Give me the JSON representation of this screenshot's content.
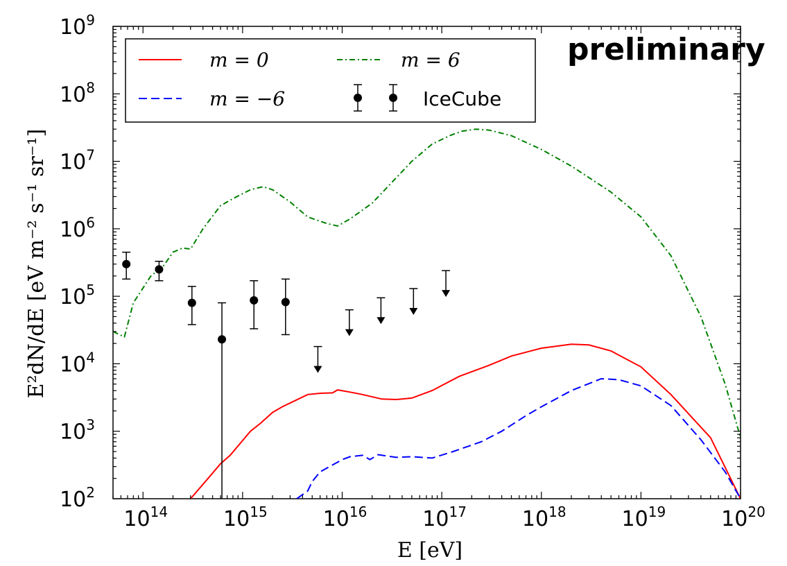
{
  "chart_data": {
    "type": "line",
    "annotation": "preliminary",
    "xlabel": "E [eV]",
    "ylabel": "E²dN/dE [eV m⁻² s⁻¹ sr⁻¹]",
    "xscale": "log",
    "yscale": "log",
    "xlim": [
      50000000000000.0,
      1e+20
    ],
    "ylim": [
      100,
      1000000000.0
    ],
    "x_ticks": [
      {
        "value": 100000000000000.0,
        "base": "10",
        "exp": "14"
      },
      {
        "value": 1000000000000000.0,
        "base": "10",
        "exp": "15"
      },
      {
        "value": 1e+16,
        "base": "10",
        "exp": "16"
      },
      {
        "value": 1e+17,
        "base": "10",
        "exp": "17"
      },
      {
        "value": 1e+18,
        "base": "10",
        "exp": "18"
      },
      {
        "value": 1e+19,
        "base": "10",
        "exp": "19"
      },
      {
        "value": 1e+20,
        "base": "10",
        "exp": "20"
      }
    ],
    "y_ticks": [
      {
        "value": 100.0,
        "base": "10",
        "exp": "2"
      },
      {
        "value": 1000.0,
        "base": "10",
        "exp": "3"
      },
      {
        "value": 10000.0,
        "base": "10",
        "exp": "4"
      },
      {
        "value": 100000.0,
        "base": "10",
        "exp": "5"
      },
      {
        "value": 1000000.0,
        "base": "10",
        "exp": "6"
      },
      {
        "value": 10000000.0,
        "base": "10",
        "exp": "7"
      },
      {
        "value": 100000000.0,
        "base": "10",
        "exp": "8"
      },
      {
        "value": 1000000000.0,
        "base": "10",
        "exp": "9"
      }
    ],
    "grid": false,
    "legend_position": "top-left",
    "series": [
      {
        "name": "m = 0",
        "color": "#ff0000",
        "style": "solid",
        "points": [
          [
            300000000000000.0,
            100
          ],
          [
            450000000000000.0,
            200
          ],
          [
            600000000000000.0,
            330
          ],
          [
            750000000000000.0,
            440
          ],
          [
            1200000000000000.0,
            1000
          ],
          [
            1500000000000000.0,
            1300
          ],
          [
            2000000000000000.0,
            1900
          ],
          [
            2500000000000000.0,
            2300
          ],
          [
            3300000000000000.0,
            2800
          ],
          [
            4500000000000000.0,
            3500
          ],
          [
            6000000000000000.0,
            3650
          ],
          [
            8000000000000000.0,
            3700
          ],
          [
            9000000000000000.0,
            4100
          ],
          [
            1.2e+16,
            3800
          ],
          [
            1.6e+16,
            3500
          ],
          [
            2.5e+16,
            3000
          ],
          [
            3.5e+16,
            2950
          ],
          [
            5e+16,
            3100
          ],
          [
            8e+16,
            4000
          ],
          [
            1.5e+17,
            6500
          ],
          [
            3e+17,
            9500
          ],
          [
            5e+17,
            13000
          ],
          [
            1e+18,
            17000
          ],
          [
            2e+18,
            19500
          ],
          [
            3e+18,
            19000
          ],
          [
            5e+18,
            15500
          ],
          [
            1e+19,
            9000
          ],
          [
            2e+19,
            3500
          ],
          [
            5e+19,
            800
          ],
          [
            1e+20,
            100
          ]
        ]
      },
      {
        "name": "m = −6",
        "color": "#0000ff",
        "style": "dashed",
        "points": [
          [
            3500000000000000.0,
            100
          ],
          [
            4500000000000000.0,
            130
          ],
          [
            5000000000000000.0,
            180
          ],
          [
            6000000000000000.0,
            250
          ],
          [
            1e+16,
            380
          ],
          [
            1.2e+16,
            420
          ],
          [
            1.6e+16,
            440
          ],
          [
            1.9e+16,
            380
          ],
          [
            2.3e+16,
            450
          ],
          [
            3.5e+16,
            410
          ],
          [
            5e+16,
            420
          ],
          [
            8e+16,
            400
          ],
          [
            1.3e+17,
            500
          ],
          [
            2.5e+17,
            700
          ],
          [
            4e+17,
            1000
          ],
          [
            7e+17,
            1700
          ],
          [
            1e+18,
            2300
          ],
          [
            2e+18,
            4000
          ],
          [
            4e+18,
            6000
          ],
          [
            6e+18,
            5800
          ],
          [
            1e+19,
            4700
          ],
          [
            2e+19,
            2400
          ],
          [
            4e+19,
            750
          ],
          [
            7e+19,
            250
          ],
          [
            1e+20,
            100
          ]
        ]
      },
      {
        "name": "m = 6",
        "color": "#008000",
        "style": "dashdot",
        "points": [
          [
            50000000000000.0,
            30000
          ],
          [
            65000000000000.0,
            25000
          ],
          [
            80000000000000.0,
            80000
          ],
          [
            120000000000000.0,
            200000
          ],
          [
            160000000000000.0,
            280000
          ],
          [
            200000000000000.0,
            450000
          ],
          [
            250000000000000.0,
            520000
          ],
          [
            300000000000000.0,
            500000
          ],
          [
            400000000000000.0,
            1000000
          ],
          [
            600000000000000.0,
            2200000
          ],
          [
            800000000000000.0,
            2800000
          ],
          [
            1200000000000000.0,
            3800000
          ],
          [
            1600000000000000.0,
            4200000
          ],
          [
            2000000000000000.0,
            3800000
          ],
          [
            3000000000000000.0,
            2500000
          ],
          [
            4500000000000000.0,
            1500000
          ],
          [
            7000000000000000.0,
            1200000
          ],
          [
            9000000000000000.0,
            1100000
          ],
          [
            1.2e+16,
            1400000
          ],
          [
            2e+16,
            2400000
          ],
          [
            3e+16,
            4500000
          ],
          [
            5e+16,
            10000000
          ],
          [
            8e+16,
            18000000
          ],
          [
            1.2e+17,
            24000000
          ],
          [
            1.6e+17,
            28000000
          ],
          [
            2.2e+17,
            30000000
          ],
          [
            3e+17,
            29000000
          ],
          [
            5e+17,
            24000000
          ],
          [
            1e+18,
            15000000
          ],
          [
            2e+18,
            8500000
          ],
          [
            5e+18,
            3500000
          ],
          [
            1e+19,
            1500000
          ],
          [
            2e+19,
            400000
          ],
          [
            4e+19,
            50000
          ],
          [
            7e+19,
            5000
          ],
          [
            1e+20,
            800
          ]
        ]
      }
    ],
    "icecube": {
      "name": "IceCube",
      "color": "#000000",
      "points": [
        {
          "x": 68000000000000.0,
          "y": 300000,
          "ylo": 180000,
          "yhi": 450000
        },
        {
          "x": 145000000000000.0,
          "y": 250000,
          "ylo": 170000,
          "yhi": 330000
        },
        {
          "x": 310000000000000.0,
          "y": 80000,
          "ylo": 38000,
          "yhi": 140000
        },
        {
          "x": 620000000000000.0,
          "y": 23000,
          "ylo": 100,
          "yhi": 80000
        },
        {
          "x": 1300000000000000.0,
          "y": 87000,
          "ylo": 33000,
          "yhi": 170000
        },
        {
          "x": 2700000000000000.0,
          "y": 82000,
          "ylo": 27000,
          "yhi": 180000
        }
      ],
      "upper_limits": [
        {
          "x": 5700000000000000.0,
          "y": 18000
        },
        {
          "x": 1.18e+16,
          "y": 63000
        },
        {
          "x": 2.45e+16,
          "y": 95000
        },
        {
          "x": 5.2e+16,
          "y": 130000
        },
        {
          "x": 1.1e+17,
          "y": 240000
        }
      ]
    }
  },
  "legend": {
    "entries": [
      {
        "label": "m = 0",
        "color": "#ff0000",
        "style": "solid"
      },
      {
        "label": "m = 6",
        "color": "#008000",
        "style": "dashdot"
      },
      {
        "label": "m = −6",
        "color": "#0000ff",
        "style": "dashed"
      },
      {
        "label": "IceCube",
        "color": "#000000",
        "style": "errorbar"
      }
    ]
  }
}
